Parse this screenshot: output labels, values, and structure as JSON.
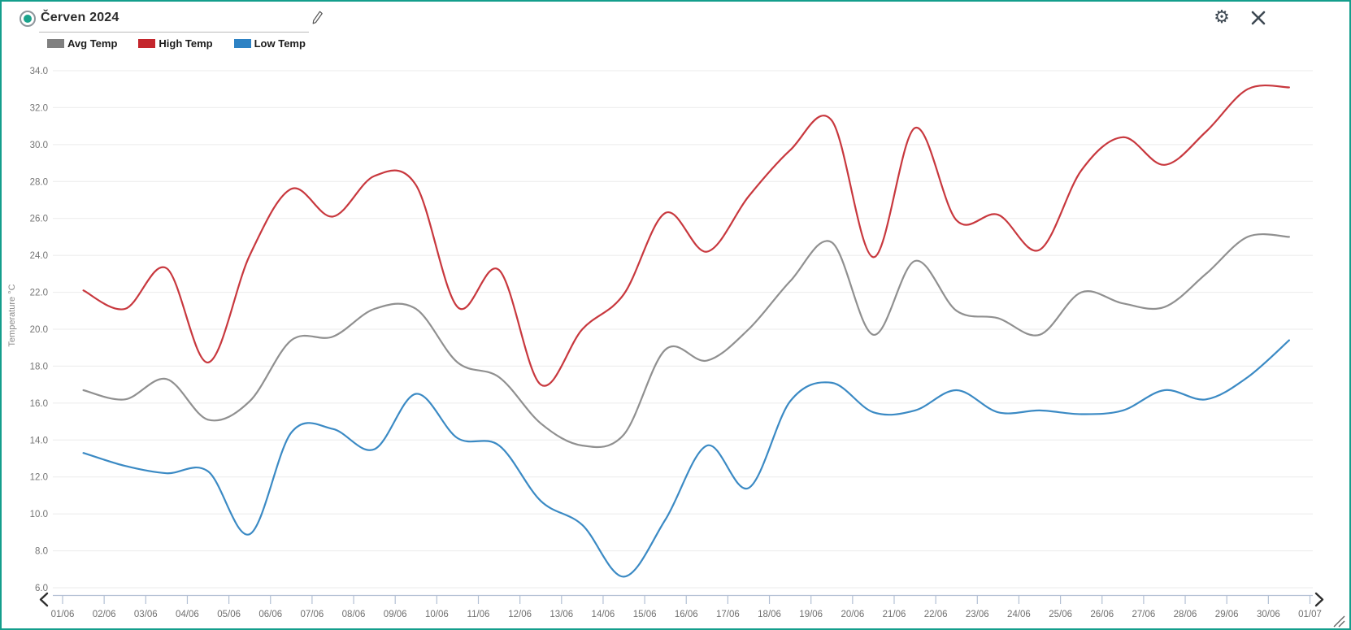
{
  "window": {
    "title": "Červen 2024",
    "controls": {
      "edit_icon": "pencil-icon",
      "settings_icon": "gear-icon",
      "close_icon": "close-icon",
      "radio_icon": "radio-selected-icon"
    },
    "accent_color": "#149e8c"
  },
  "legend": {
    "items": [
      {
        "label": "Avg Temp",
        "color": "#808080"
      },
      {
        "label": "High Temp",
        "color": "#c4262c"
      },
      {
        "label": "Low Temp",
        "color": "#2d82c4"
      }
    ]
  },
  "axis_controls": {
    "pan_left_icon": "chevron-left-icon",
    "pan_right_icon": "chevron-right-icon",
    "resize_icon": "resize-grip-icon"
  },
  "chart_data": {
    "type": "line",
    "title": "",
    "xlabel": "",
    "ylabel": "Temperature °C",
    "ylim": [
      6.0,
      34.0
    ],
    "ytick_step": 2.0,
    "grid": true,
    "legend_position": "top-left",
    "categories": [
      "01/06",
      "02/06",
      "03/06",
      "04/06",
      "05/06",
      "06/06",
      "07/06",
      "08/06",
      "09/06",
      "10/06",
      "11/06",
      "12/06",
      "13/06",
      "14/06",
      "15/06",
      "16/06",
      "17/06",
      "18/06",
      "19/06",
      "20/06",
      "21/06",
      "22/06",
      "23/06",
      "24/06",
      "25/06",
      "26/06",
      "27/06",
      "28/06",
      "29/06",
      "30/06",
      "01/07"
    ],
    "points_note": "30 daily values drawn at band centers between the 31 axis ticks",
    "series": [
      {
        "name": "Avg Temp",
        "color": "#909090",
        "values": [
          16.7,
          16.2,
          17.3,
          15.1,
          16.1,
          19.4,
          19.6,
          21.1,
          21.1,
          18.2,
          17.4,
          14.9,
          13.7,
          14.3,
          18.9,
          18.3,
          20.0,
          22.6,
          24.7,
          19.7,
          23.7,
          21.0,
          20.6,
          19.7,
          22.0,
          21.4,
          21.2,
          23.0,
          25.0,
          25.0
        ]
      },
      {
        "name": "High Temp",
        "color": "#c8383e",
        "values": [
          22.1,
          21.1,
          23.3,
          18.2,
          24.0,
          27.6,
          26.1,
          28.3,
          27.8,
          21.2,
          23.2,
          17.0,
          20.0,
          21.9,
          26.3,
          24.2,
          27.2,
          29.7,
          31.3,
          23.9,
          30.9,
          25.9,
          26.2,
          24.3,
          28.6,
          30.4,
          28.9,
          30.7,
          33.0,
          33.1
        ]
      },
      {
        "name": "Low Temp",
        "color": "#3b8ac4",
        "values": [
          13.3,
          12.6,
          12.2,
          12.3,
          8.9,
          14.4,
          14.6,
          13.5,
          16.5,
          14.1,
          13.7,
          10.7,
          9.4,
          6.6,
          9.7,
          13.7,
          11.4,
          16.1,
          17.1,
          15.5,
          15.6,
          16.7,
          15.5,
          15.6,
          15.4,
          15.6,
          16.7,
          16.2,
          17.4,
          19.4
        ]
      }
    ],
    "style": {
      "gridline_color": "#ebebeb",
      "tick_label_color": "#757575",
      "axis_line_color": "#b3c0d4",
      "line_width": 2.2
    }
  }
}
